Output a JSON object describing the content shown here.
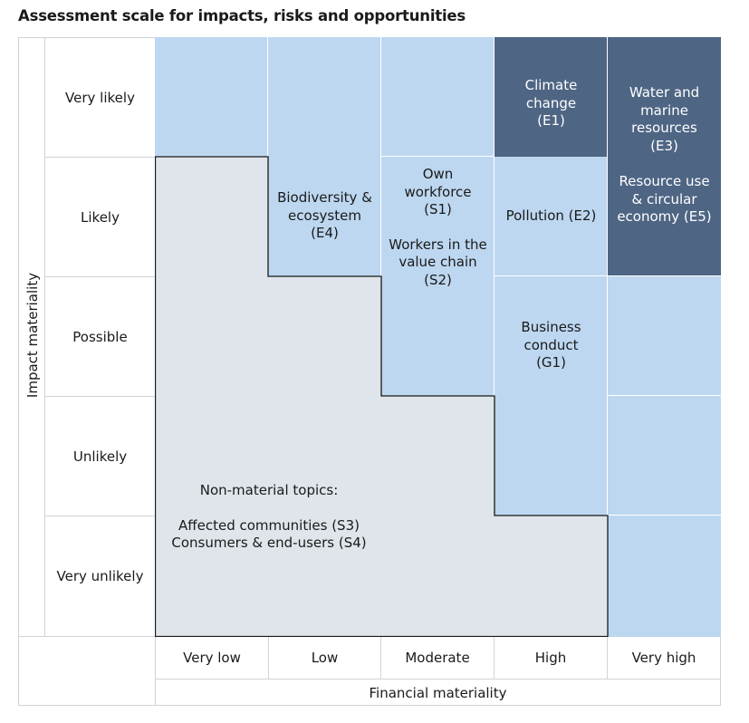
{
  "title": "Assessment scale for impacts, risks and opportunities",
  "axes": {
    "y_label": "Impact materiality",
    "x_label": "Financial materiality",
    "y_levels": [
      "Very likely",
      "Likely",
      "Possible",
      "Unlikely",
      "Very unlikely"
    ],
    "x_levels": [
      "Very low",
      "Low",
      "Moderate",
      "High",
      "Very high"
    ]
  },
  "topics": {
    "climate": "Climate change (E1)",
    "water": "Water and marine resources (E3)",
    "resource": "Resource use & circular economy (E5)",
    "biodiversity": "Biodiversity & ecosystem (E4)",
    "own_workforce": "Own workforce (S1)",
    "workers_value_chain": "Workers in the value chain (S2)",
    "pollution": "Pollution (E2)",
    "business_conduct": "Business conduct (G1)",
    "non_material_heading": "Non-material topics:",
    "affected_communities": "Affected communities (S3)",
    "consumers": "Consumers & end-users (S4)"
  },
  "colors": {
    "material_light": "#bdd7f0",
    "material_dark": "#4e6584",
    "non_material": "#dfe5ea",
    "frame": "#cfd4d9",
    "text": "#1a1a1a"
  }
}
